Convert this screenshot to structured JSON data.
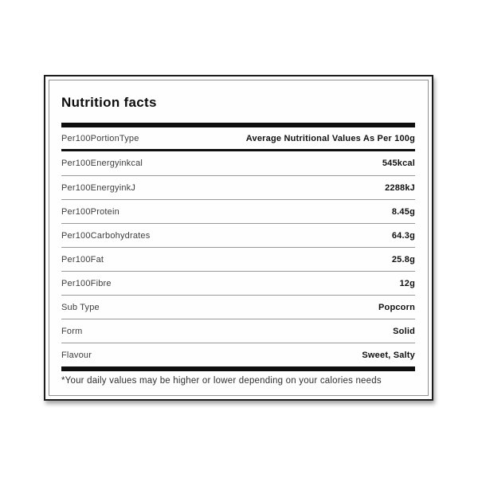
{
  "panel": {
    "title": "Nutrition facts",
    "header_row": {
      "label": "Per100PortionType",
      "value": "Average Nutritional Values As Per 100g"
    },
    "rows": [
      {
        "label": "Per100Energyinkcal",
        "value": "545kcal"
      },
      {
        "label": "Per100EnergyinkJ",
        "value": "2288kJ"
      },
      {
        "label": "Per100Protein",
        "value": "8.45g"
      },
      {
        "label": "Per100Carbohydrates",
        "value": "64.3g"
      },
      {
        "label": "Per100Fat",
        "value": "25.8g"
      },
      {
        "label": "Per100Fibre",
        "value": "12g"
      },
      {
        "label": "Sub Type",
        "value": "Popcorn"
      },
      {
        "label": "Form",
        "value": "Solid"
      },
      {
        "label": "Flavour",
        "value": "Sweet, Salty"
      }
    ],
    "footnote": "*Your daily values may be higher or lower depending on your calories needs",
    "colors": {
      "panel_background": "#fefefe",
      "outer_border": "#1c1c1c",
      "inner_border": "#8f8f8f",
      "section_bar": "#0e0e0e",
      "row_divider": "#999999",
      "label_text": "#3d3d3d",
      "value_text": "#101010"
    }
  }
}
